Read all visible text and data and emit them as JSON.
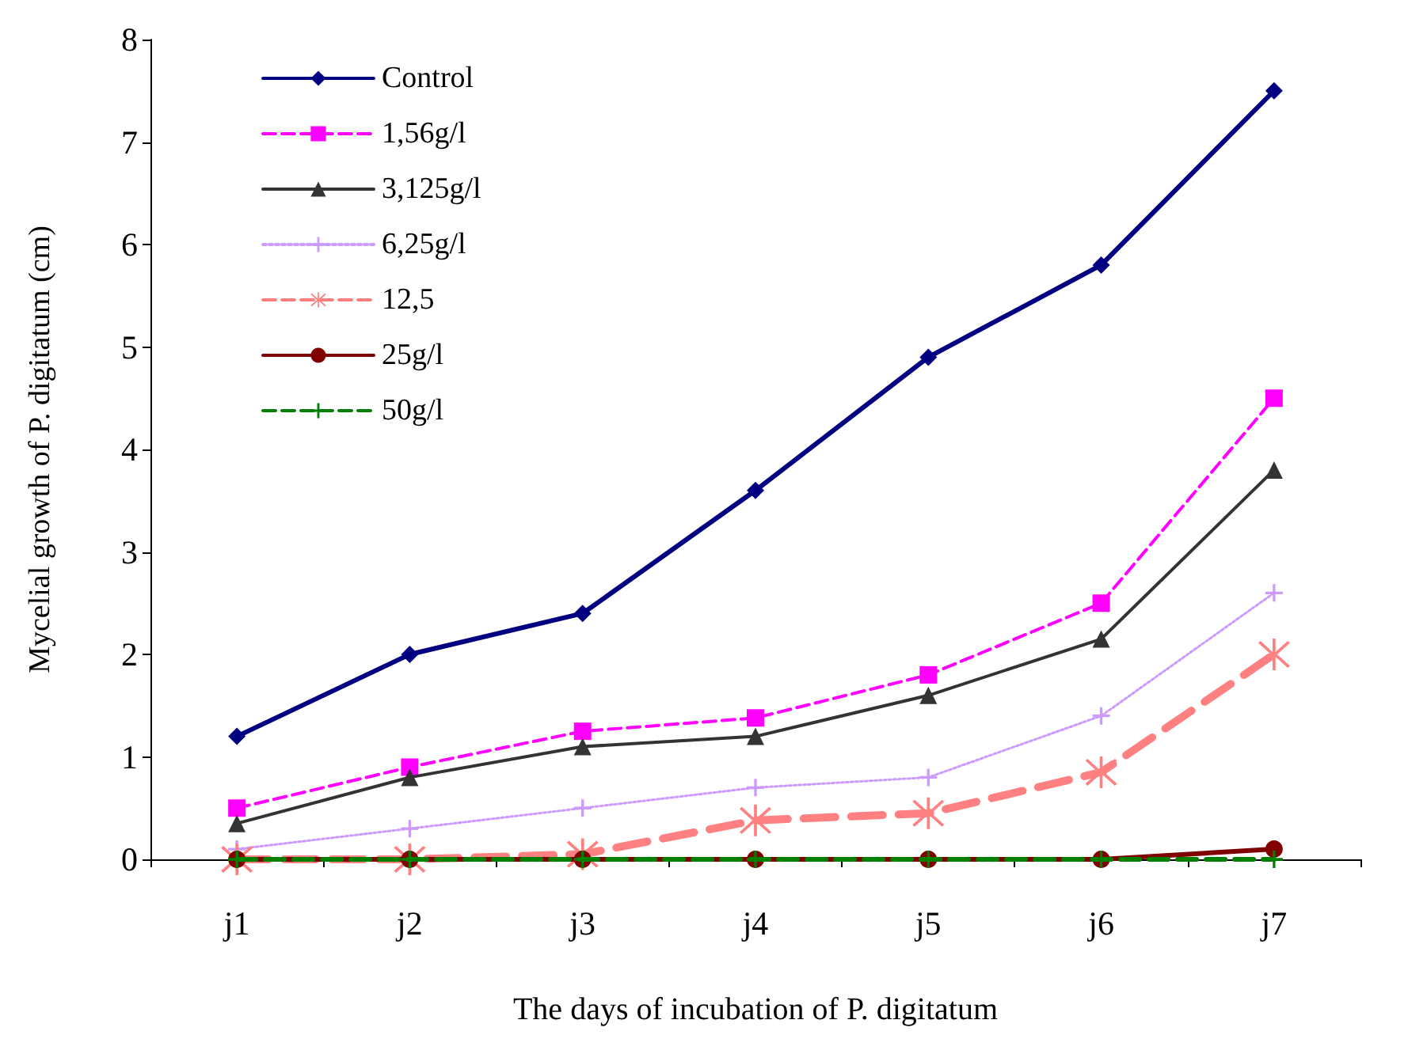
{
  "chart_data": {
    "type": "line",
    "categories": [
      "j1",
      "j2",
      "j3",
      "j4",
      "j5",
      "j6",
      "j7"
    ],
    "xlabel": "The days of incubation of P. digitatum",
    "ylabel": "Mycelial growth of P. digitatum (cm)",
    "ylim": [
      0,
      8
    ],
    "yticks": [
      0,
      1,
      2,
      3,
      4,
      5,
      6,
      7,
      8
    ],
    "grid": false,
    "legend": "top left",
    "series": [
      {
        "name": "Control",
        "color": "#000080",
        "marker": "diamond",
        "line_style": "solid",
        "values": [
          1.2,
          2.0,
          2.4,
          3.6,
          4.9,
          5.8,
          7.5
        ]
      },
      {
        "name": "1,56g/l",
        "color": "#ff00ff",
        "marker": "square",
        "line_style": "dashed",
        "values": [
          0.5,
          0.9,
          1.25,
          1.38,
          1.8,
          2.5,
          4.5
        ]
      },
      {
        "name": "3,125g/l",
        "color": "#333333",
        "marker": "triangle",
        "line_style": "solid",
        "values": [
          0.35,
          0.8,
          1.1,
          1.2,
          1.6,
          2.15,
          3.8
        ]
      },
      {
        "name": "6,25g/l",
        "color": "#cc99ff",
        "marker": "cross",
        "line_style": "dotted",
        "values": [
          0.1,
          0.3,
          0.5,
          0.7,
          0.8,
          1.4,
          2.6
        ]
      },
      {
        "name": "12,5",
        "color": "#ff8080",
        "marker": "star",
        "line_style": "dashed",
        "values": [
          0,
          0,
          0.05,
          0.38,
          0.45,
          0.85,
          2.0
        ]
      },
      {
        "name": "25g/l",
        "color": "#800000",
        "marker": "circle",
        "line_style": "solid",
        "values": [
          0,
          0,
          0,
          0,
          0,
          0,
          0.1
        ]
      },
      {
        "name": "50g/l",
        "color": "#008000",
        "marker": "cross",
        "line_style": "dashed",
        "values": [
          0,
          0,
          0,
          0,
          0,
          0,
          0
        ]
      }
    ]
  }
}
